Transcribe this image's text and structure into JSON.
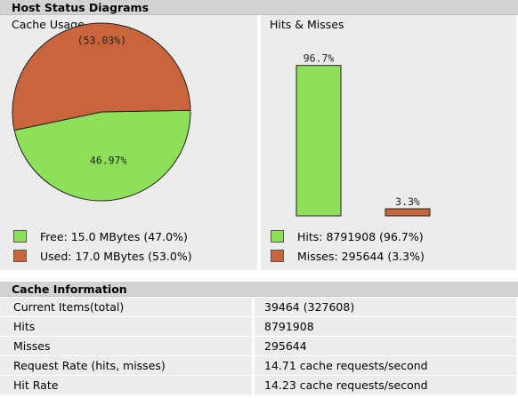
{
  "header": {
    "title": "Host Status Diagrams"
  },
  "cache_usage": {
    "title": "Cache Usage",
    "legend": [
      {
        "label": "Free: 15.0 MBytes (47.0%)",
        "color": "#8ee05a"
      },
      {
        "label": "Used: 17.0 MBytes (53.0%)",
        "color": "#c8653c"
      }
    ]
  },
  "hits_misses": {
    "title": "Hits & Misses",
    "legend": [
      {
        "label": "Hits: 8791908 (96.7%)",
        "color": "#8ee05a"
      },
      {
        "label": "Misses: 295644 (3.3%)",
        "color": "#c8653c"
      }
    ]
  },
  "chart_data": [
    {
      "type": "pie",
      "title": "Cache Usage",
      "slices": [
        {
          "name": "Free",
          "value": 46.97,
          "label": "46.97%",
          "color": "#8ee05a"
        },
        {
          "name": "Used",
          "value": 53.03,
          "label": "(53.03%)",
          "color": "#c8653c"
        }
      ]
    },
    {
      "type": "bar",
      "title": "Hits & Misses",
      "categories": [
        "Hits",
        "Misses"
      ],
      "values": [
        96.7,
        3.3
      ],
      "labels": [
        "96.7%",
        "3.3%"
      ],
      "colors": [
        "#8ee05a",
        "#c8653c"
      ],
      "ylim": [
        0,
        100
      ]
    }
  ],
  "info": {
    "title": "Cache Information",
    "rows": [
      {
        "label": "Current Items(total)",
        "value": "39464 (327608)"
      },
      {
        "label": "Hits",
        "value": "8791908"
      },
      {
        "label": "Misses",
        "value": "295644"
      },
      {
        "label": "Request Rate (hits, misses)",
        "value": "14.71 cache requests/second"
      },
      {
        "label": "Hit Rate",
        "value": "14.23 cache requests/second"
      }
    ]
  }
}
